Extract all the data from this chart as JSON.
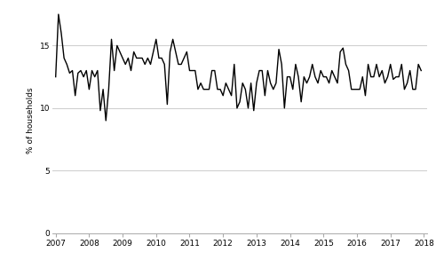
{
  "title": "",
  "ylabel": "% of households",
  "xlabel": "",
  "ylim": [
    0,
    18
  ],
  "yticks": [
    0,
    5,
    10,
    15
  ],
  "x_start_year": 2007,
  "x_end_year": 2018,
  "xtick_years": [
    2007,
    2008,
    2009,
    2010,
    2011,
    2012,
    2013,
    2014,
    2015,
    2016,
    2017,
    2018
  ],
  "line_color": "#000000",
  "line_width": 1.0,
  "grid_color": "#cccccc",
  "background_color": "#ffffff",
  "values": [
    12.5,
    17.5,
    16.0,
    14.0,
    13.5,
    12.8,
    13.0,
    11.0,
    12.8,
    13.0,
    12.5,
    13.0,
    11.5,
    13.0,
    12.5,
    13.0,
    9.8,
    11.5,
    9.0,
    11.5,
    15.5,
    13.0,
    15.0,
    14.5,
    14.0,
    13.5,
    14.0,
    13.0,
    14.5,
    14.0,
    14.0,
    14.0,
    13.5,
    14.0,
    13.5,
    14.5,
    15.5,
    14.0,
    14.0,
    13.5,
    10.3,
    14.5,
    15.5,
    14.5,
    13.5,
    13.5,
    14.0,
    14.5,
    13.0,
    13.0,
    13.0,
    11.5,
    12.0,
    11.5,
    11.5,
    11.5,
    13.0,
    13.0,
    11.5,
    11.5,
    11.0,
    12.0,
    11.5,
    11.0,
    13.5,
    10.0,
    10.5,
    12.0,
    11.5,
    10.0,
    12.0,
    9.8,
    12.0,
    13.0,
    13.0,
    11.0,
    13.0,
    12.0,
    11.5,
    12.0,
    14.7,
    13.5,
    10.0,
    12.5,
    12.5,
    11.5,
    13.5,
    12.5,
    10.5,
    12.5,
    12.0,
    12.5,
    13.5,
    12.5,
    12.0,
    13.0,
    12.5,
    12.5,
    12.0,
    13.0,
    12.5,
    12.0,
    14.5,
    14.8,
    13.5,
    13.0,
    11.5,
    11.5,
    11.5,
    11.5,
    12.5,
    11.0,
    13.5,
    12.5,
    12.5,
    13.5,
    12.5,
    13.0,
    12.0,
    12.5,
    13.5,
    12.3,
    12.5,
    12.5,
    13.5,
    11.5,
    12.0,
    13.0,
    11.5,
    11.5,
    13.5,
    13.0
  ]
}
